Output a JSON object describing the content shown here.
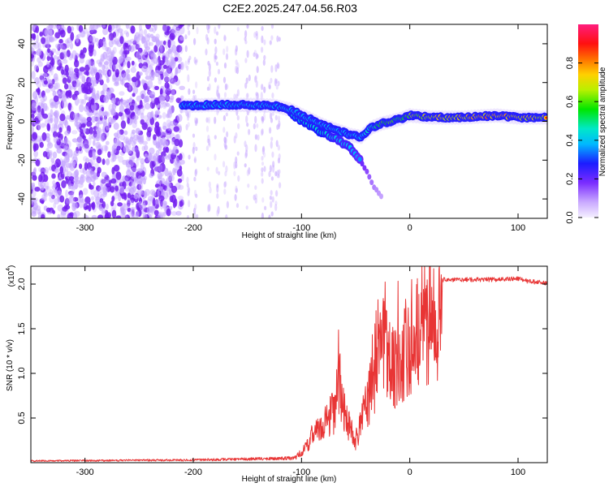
{
  "title": "C2E2.2025.247.04.56.R03",
  "chart_data": [
    {
      "type": "heatmap",
      "name": "spectrogram",
      "xlabel": "Height of straight line (km)",
      "ylabel": "Frequency (Hz)",
      "xlim": [
        -350,
        127
      ],
      "ylim": [
        -50,
        50
      ],
      "xticks": [
        -300,
        -200,
        -100,
        0,
        100
      ],
      "yticks": [
        -40,
        -20,
        0,
        20,
        40
      ],
      "xtick_labels": [
        "-300",
        "-200",
        "-100",
        "0",
        "100"
      ],
      "ytick_labels": [
        "-40",
        "-20",
        "0",
        "20",
        "40"
      ],
      "colorbar": {
        "label": "Normalized spectral amplitude",
        "range": [
          0,
          1
        ],
        "ticks": [
          0.0,
          0.2,
          0.4,
          0.6,
          0.8
        ],
        "tick_labels": [
          "0.0",
          "0.2",
          "0.4",
          "0.6",
          "0.8"
        ]
      },
      "noise_region": {
        "x": [
          -350,
          -210
        ],
        "amplitude": 0.08
      },
      "sparse_noise_region": {
        "x": [
          -210,
          -118
        ],
        "amplitude": 0.05
      },
      "signal_track": {
        "x": [
          -210,
          -180,
          -150,
          -125,
          -110,
          -95,
          -80,
          -65,
          -55,
          -45,
          -35,
          -25,
          -10,
          0,
          20,
          50,
          80,
          100,
          127
        ],
        "y": [
          8,
          8.5,
          8.5,
          8,
          6,
          2,
          -2,
          -5,
          -7,
          -8,
          -3,
          -1,
          1,
          3,
          2,
          2,
          3,
          2,
          2
        ],
        "amplitude": [
          0.4,
          0.45,
          0.45,
          0.45,
          0.35,
          0.35,
          0.35,
          0.4,
          0.5,
          0.5,
          0.65,
          0.75,
          0.75,
          0.8,
          0.85,
          0.9,
          0.95,
          0.9,
          0.85
        ]
      },
      "signal_branch": {
        "x": [
          -110,
          -95,
          -80,
          -65,
          -55,
          -45,
          -35,
          -25
        ],
        "y": [
          4,
          -1,
          -6,
          -10,
          -14,
          -20,
          -32,
          -40
        ],
        "amplitude": [
          0.35,
          0.35,
          0.35,
          0.3,
          0.3,
          0.25,
          0.15,
          0.1
        ]
      }
    },
    {
      "type": "line",
      "name": "snr",
      "xlabel": "Height of straight line (km)",
      "ylabel": "SNR (10 * v/v)",
      "scale_label": "(x10",
      "scale_exponent": "4",
      "xlim": [
        -350,
        127
      ],
      "ylim": [
        0,
        22000
      ],
      "xticks": [
        -300,
        -200,
        -100,
        0,
        100
      ],
      "yticks": [
        5000,
        10000,
        15000,
        20000
      ],
      "xtick_labels": [
        "-300",
        "-200",
        "-100",
        "0",
        "100"
      ],
      "ytick_labels": [
        "0.5",
        "1.0",
        "1.5",
        "2.0"
      ],
      "color": "#e83535",
      "envelope": {
        "x": [
          -350,
          -200,
          -150,
          -110,
          -100,
          -90,
          -80,
          -70,
          -65,
          -60,
          -55,
          -50,
          -45,
          -40,
          -35,
          -30,
          -25,
          -20,
          -15,
          -10,
          -5,
          0,
          10,
          20,
          30,
          40,
          60,
          80,
          100,
          110,
          127
        ],
        "y": [
          200,
          300,
          400,
          500,
          1200,
          3500,
          5000,
          7000,
          11000,
          6500,
          4500,
          3000,
          5500,
          8000,
          10500,
          12500,
          15500,
          14500,
          13000,
          14000,
          15500,
          16500,
          18500,
          19500,
          20500,
          20500,
          20500,
          20500,
          20600,
          20300,
          20100
        ]
      }
    }
  ]
}
